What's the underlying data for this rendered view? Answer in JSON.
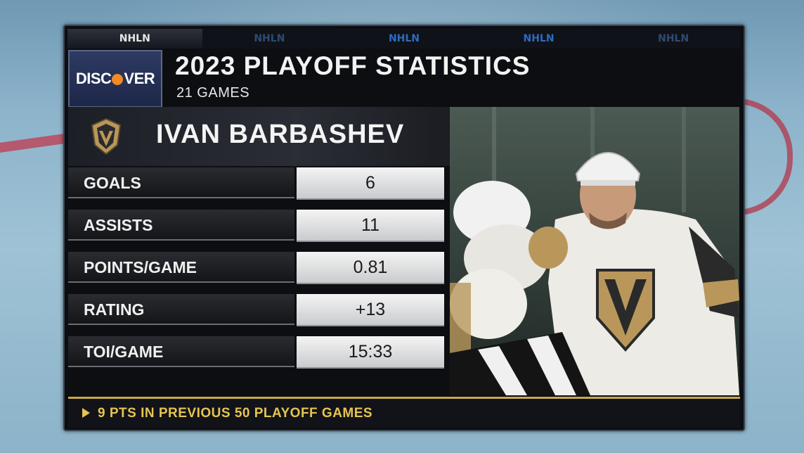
{
  "network": {
    "tabs": [
      "NHLN",
      "NHLN",
      "NHLN",
      "NHLN",
      "NHLN"
    ]
  },
  "sponsor": {
    "name_left": "DISC",
    "name_right": "VER"
  },
  "header": {
    "title": "2023 PLAYOFF STATISTICS",
    "subtitle": "21 GAMES"
  },
  "player": {
    "name": "IVAN BARBASHEV",
    "team_logo_icon": "golden-knights-helmet-icon"
  },
  "stats": [
    {
      "label": "GOALS",
      "value": "6"
    },
    {
      "label": "ASSISTS",
      "value": "11"
    },
    {
      "label": "POINTS/GAME",
      "value": "0.81"
    },
    {
      "label": "RATING",
      "value": "+13"
    },
    {
      "label": "TOI/GAME",
      "value": "15:33"
    }
  ],
  "ticker": {
    "text": "9 PTS IN PREVIOUS 50 PLAYOFF GAMES"
  },
  "colors": {
    "accent_gold": "#c8a84a",
    "ticker_text": "#e6c450",
    "sponsor_bg": "#2d3a63"
  }
}
